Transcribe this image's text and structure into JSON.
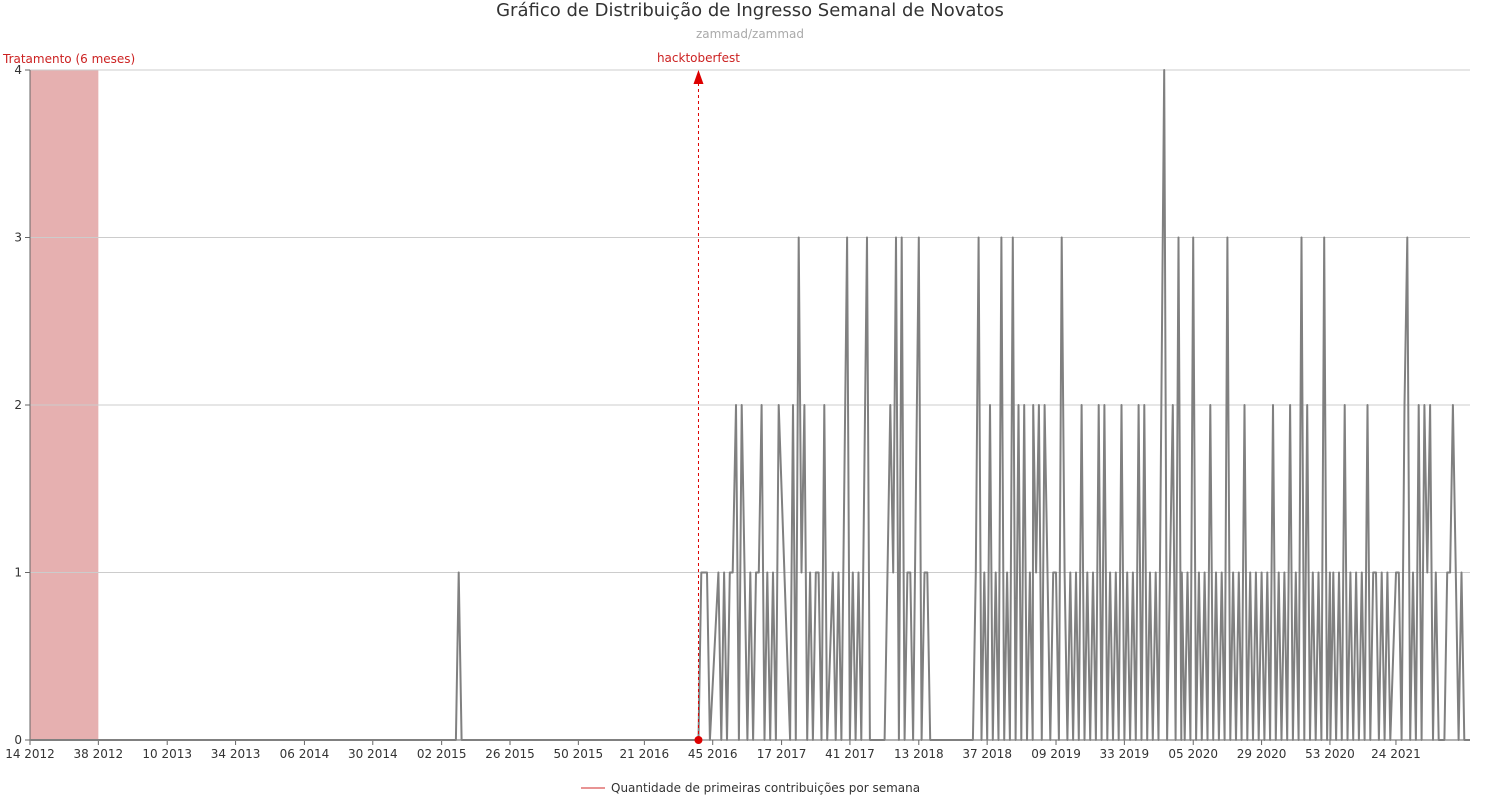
{
  "chart_data": {
    "type": "line",
    "title": "Gráfico de Distribuição de Ingresso Semanal de Novatos",
    "subtitle": "zammad/zammad",
    "ylim": [
      0,
      4
    ],
    "yticks": [
      0,
      1,
      2,
      3,
      4
    ],
    "grid": true,
    "xtick_labels": [
      "14 2012",
      "38 2012",
      "10 2013",
      "34 2013",
      "06 2014",
      "30 2014",
      "02 2015",
      "26 2015",
      "50 2015",
      "21 2016",
      "45 2016",
      "17 2017",
      "41 2017",
      "13 2018",
      "37 2018",
      "09 2019",
      "33 2019",
      "05 2020",
      "29 2020",
      "53 2020",
      "24 2021"
    ],
    "x_start": "14 2012",
    "x_end": "50 2021",
    "legend": {
      "placement": "bottom-center"
    },
    "series": [
      {
        "name": "Quantidade de primeiras contribuições por semana",
        "color": "#808080",
        "points": [
          [
            "14 2012",
            0
          ],
          [
            "07 2015",
            0
          ],
          [
            "08 2015",
            1
          ],
          [
            "09 2015",
            0
          ],
          [
            "40 2016",
            0
          ],
          [
            "41 2016",
            1
          ],
          [
            "43 2016",
            1
          ],
          [
            "44 2016",
            0
          ],
          [
            "47 2016",
            1
          ],
          [
            "48 2016",
            0
          ],
          [
            "49 2016",
            1
          ],
          [
            "50 2016",
            0
          ],
          [
            "51 2016",
            1
          ],
          [
            "52 2016",
            1
          ],
          [
            "01 2017",
            2
          ],
          [
            "02 2017",
            0
          ],
          [
            "03 2017",
            2
          ],
          [
            "04 2017",
            1
          ],
          [
            "05 2017",
            0
          ],
          [
            "06 2017",
            1
          ],
          [
            "07 2017",
            0
          ],
          [
            "08 2017",
            1
          ],
          [
            "09 2017",
            1
          ],
          [
            "10 2017",
            2
          ],
          [
            "11 2017",
            0
          ],
          [
            "12 2017",
            1
          ],
          [
            "13 2017",
            0
          ],
          [
            "14 2017",
            1
          ],
          [
            "15 2017",
            0
          ],
          [
            "16 2017",
            2
          ],
          [
            "20 2017",
            0
          ],
          [
            "21 2017",
            2
          ],
          [
            "22 2017",
            0
          ],
          [
            "23 2017",
            3
          ],
          [
            "24 2017",
            1
          ],
          [
            "25 2017",
            2
          ],
          [
            "26 2017",
            0
          ],
          [
            "27 2017",
            1
          ],
          [
            "28 2017",
            0
          ],
          [
            "29 2017",
            1
          ],
          [
            "30 2017",
            1
          ],
          [
            "31 2017",
            0
          ],
          [
            "32 2017",
            2
          ],
          [
            "33 2017",
            0
          ],
          [
            "35 2017",
            1
          ],
          [
            "36 2017",
            0
          ],
          [
            "37 2017",
            1
          ],
          [
            "38 2017",
            0
          ],
          [
            "40 2017",
            3
          ],
          [
            "41 2017",
            0
          ],
          [
            "42 2017",
            1
          ],
          [
            "43 2017",
            0
          ],
          [
            "44 2017",
            1
          ],
          [
            "45 2017",
            0
          ],
          [
            "47 2017",
            3
          ],
          [
            "48 2017",
            0
          ],
          [
            "01 2018",
            0
          ],
          [
            "02 2018",
            1
          ],
          [
            "03 2018",
            2
          ],
          [
            "04 2018",
            1
          ],
          [
            "05 2018",
            3
          ],
          [
            "06 2018",
            0
          ],
          [
            "07 2018",
            3
          ],
          [
            "08 2018",
            0
          ],
          [
            "09 2018",
            1
          ],
          [
            "10 2018",
            1
          ],
          [
            "11 2018",
            0
          ],
          [
            "13 2018",
            3
          ],
          [
            "14 2018",
            0
          ],
          [
            "15 2018",
            1
          ],
          [
            "16 2018",
            1
          ],
          [
            "17 2018",
            0
          ],
          [
            "32 2018",
            0
          ],
          [
            "33 2018",
            1
          ],
          [
            "34 2018",
            3
          ],
          [
            "35 2018",
            0
          ],
          [
            "36 2018",
            1
          ],
          [
            "37 2018",
            0
          ],
          [
            "38 2018",
            2
          ],
          [
            "39 2018",
            0
          ],
          [
            "40 2018",
            1
          ],
          [
            "41 2018",
            0
          ],
          [
            "42 2018",
            3
          ],
          [
            "43 2018",
            0
          ],
          [
            "44 2018",
            1
          ],
          [
            "45 2018",
            0
          ],
          [
            "46 2018",
            3
          ],
          [
            "47 2018",
            0
          ],
          [
            "48 2018",
            2
          ],
          [
            "49 2018",
            0
          ],
          [
            "50 2018",
            2
          ],
          [
            "51 2018",
            0
          ],
          [
            "52 2018",
            1
          ],
          [
            "53 2018",
            0
          ],
          [
            "01 2019",
            2
          ],
          [
            "02 2019",
            1
          ],
          [
            "03 2019",
            2
          ],
          [
            "04 2019",
            0
          ],
          [
            "05 2019",
            2
          ],
          [
            "06 2019",
            1
          ],
          [
            "07 2019",
            0
          ],
          [
            "08 2019",
            1
          ],
          [
            "09 2019",
            1
          ],
          [
            "10 2019",
            0
          ],
          [
            "11 2019",
            3
          ],
          [
            "12 2019",
            1
          ],
          [
            "13 2019",
            0
          ],
          [
            "14 2019",
            1
          ],
          [
            "15 2019",
            0
          ],
          [
            "16 2019",
            1
          ],
          [
            "17 2019",
            0
          ],
          [
            "18 2019",
            2
          ],
          [
            "19 2019",
            0
          ],
          [
            "20 2019",
            1
          ],
          [
            "21 2019",
            0
          ],
          [
            "22 2019",
            1
          ],
          [
            "23 2019",
            0
          ],
          [
            "24 2019",
            2
          ],
          [
            "25 2019",
            0
          ],
          [
            "26 2019",
            2
          ],
          [
            "27 2019",
            0
          ],
          [
            "28 2019",
            1
          ],
          [
            "29 2019",
            0
          ],
          [
            "30 2019",
            1
          ],
          [
            "31 2019",
            0
          ],
          [
            "32 2019",
            2
          ],
          [
            "33 2019",
            0
          ],
          [
            "34 2019",
            1
          ],
          [
            "35 2019",
            0
          ],
          [
            "36 2019",
            1
          ],
          [
            "37 2019",
            0
          ],
          [
            "38 2019",
            2
          ],
          [
            "39 2019",
            0
          ],
          [
            "40 2019",
            2
          ],
          [
            "41 2019",
            0
          ],
          [
            "42 2019",
            1
          ],
          [
            "43 2019",
            0
          ],
          [
            "44 2019",
            1
          ],
          [
            "45 2019",
            0
          ],
          [
            "47 2019",
            4
          ],
          [
            "48 2019",
            0
          ],
          [
            "50 2019",
            2
          ],
          [
            "51 2019",
            0
          ],
          [
            "52 2019",
            3
          ],
          [
            "53 2019",
            0
          ],
          [
            "01 2020",
            1
          ],
          [
            "02 2020",
            0
          ],
          [
            "03 2020",
            1
          ],
          [
            "04 2020",
            0
          ],
          [
            "05 2020",
            3
          ],
          [
            "06 2020",
            0
          ],
          [
            "07 2020",
            1
          ],
          [
            "08 2020",
            0
          ],
          [
            "09 2020",
            1
          ],
          [
            "10 2020",
            0
          ],
          [
            "11 2020",
            2
          ],
          [
            "12 2020",
            0
          ],
          [
            "13 2020",
            1
          ],
          [
            "14 2020",
            0
          ],
          [
            "15 2020",
            1
          ],
          [
            "16 2020",
            0
          ],
          [
            "17 2020",
            3
          ],
          [
            "18 2020",
            0
          ],
          [
            "19 2020",
            1
          ],
          [
            "20 2020",
            0
          ],
          [
            "21 2020",
            1
          ],
          [
            "22 2020",
            0
          ],
          [
            "23 2020",
            2
          ],
          [
            "24 2020",
            0
          ],
          [
            "25 2020",
            1
          ],
          [
            "26 2020",
            0
          ],
          [
            "27 2020",
            1
          ],
          [
            "28 2020",
            0
          ],
          [
            "29 2020",
            1
          ],
          [
            "30 2020",
            0
          ],
          [
            "31 2020",
            1
          ],
          [
            "32 2020",
            0
          ],
          [
            "33 2020",
            2
          ],
          [
            "34 2020",
            0
          ],
          [
            "35 2020",
            1
          ],
          [
            "36 2020",
            0
          ],
          [
            "37 2020",
            1
          ],
          [
            "38 2020",
            0
          ],
          [
            "39 2020",
            2
          ],
          [
            "40 2020",
            0
          ],
          [
            "41 2020",
            1
          ],
          [
            "42 2020",
            0
          ],
          [
            "43 2020",
            3
          ],
          [
            "44 2020",
            0
          ],
          [
            "45 2020",
            2
          ],
          [
            "46 2020",
            0
          ],
          [
            "47 2020",
            1
          ],
          [
            "48 2020",
            0
          ],
          [
            "49 2020",
            1
          ],
          [
            "50 2020",
            0
          ],
          [
            "51 2020",
            3
          ],
          [
            "52 2020",
            0
          ],
          [
            "53 2020",
            1
          ],
          [
            "01 2021",
            0
          ],
          [
            "02 2021",
            1
          ],
          [
            "03 2021",
            0
          ],
          [
            "04 2021",
            1
          ],
          [
            "05 2021",
            0
          ],
          [
            "06 2021",
            2
          ],
          [
            "07 2021",
            0
          ],
          [
            "08 2021",
            1
          ],
          [
            "09 2021",
            0
          ],
          [
            "10 2021",
            1
          ],
          [
            "11 2021",
            0
          ],
          [
            "12 2021",
            1
          ],
          [
            "13 2021",
            0
          ],
          [
            "14 2021",
            2
          ],
          [
            "15 2021",
            0
          ],
          [
            "16 2021",
            1
          ],
          [
            "17 2021",
            1
          ],
          [
            "18 2021",
            0
          ],
          [
            "19 2021",
            1
          ],
          [
            "20 2021",
            0
          ],
          [
            "21 2021",
            1
          ],
          [
            "22 2021",
            0
          ],
          [
            "24 2021",
            1
          ],
          [
            "25 2021",
            1
          ],
          [
            "26 2021",
            0
          ],
          [
            "27 2021",
            2
          ],
          [
            "28 2021",
            3
          ],
          [
            "29 2021",
            0
          ],
          [
            "30 2021",
            1
          ],
          [
            "31 2021",
            0
          ],
          [
            "32 2021",
            2
          ],
          [
            "33 2021",
            0
          ],
          [
            "34 2021",
            2
          ],
          [
            "35 2021",
            1
          ],
          [
            "36 2021",
            2
          ],
          [
            "37 2021",
            0
          ],
          [
            "38 2021",
            1
          ],
          [
            "39 2021",
            0
          ],
          [
            "41 2021",
            0
          ],
          [
            "42 2021",
            1
          ],
          [
            "43 2021",
            1
          ],
          [
            "44 2021",
            2
          ],
          [
            "45 2021",
            1
          ],
          [
            "46 2021",
            0
          ],
          [
            "47 2021",
            1
          ],
          [
            "48 2021",
            0
          ],
          [
            "50 2021",
            0
          ]
        ]
      }
    ],
    "annotations": {
      "treatment_band": {
        "label": "Tratamento (6 meses)",
        "start": "14 2012",
        "end": "38 2012",
        "color": "#e6b0b0",
        "label_color": "#cc2222"
      },
      "event_marker": {
        "label": "hacktoberfest",
        "at": "40 2016",
        "color": "#dd0000"
      }
    }
  }
}
